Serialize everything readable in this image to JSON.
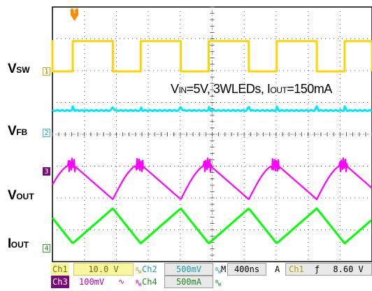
{
  "labels": {
    "vsw": {
      "main": "V",
      "sub": "SW"
    },
    "vfb": {
      "main": "V",
      "sub": "FB"
    },
    "vout": {
      "main": "V",
      "sub": "OUT"
    },
    "iout": {
      "main": "I",
      "sub": "OUT"
    }
  },
  "annotation": {
    "p1": "V",
    "p1sub": "IN",
    "p2": "=5V, 3WLEDs, I",
    "p2sub": "OUT",
    "p3": "=150mA"
  },
  "markers": {
    "ch1": "1",
    "ch2": "2",
    "ch3": "3",
    "ch4": "4",
    "trigger": "T"
  },
  "status": {
    "ch1": {
      "name": "Ch1",
      "value": "10.0 V"
    },
    "ch2": {
      "name": "Ch2",
      "value": "500mV"
    },
    "ch3": {
      "name": "Ch3",
      "value": "100mV"
    },
    "ch4": {
      "name": "Ch4",
      "value": "500mA"
    },
    "bw": "B",
    "bw_w": "W",
    "ac_symbol": "∿",
    "time_prefix": "M",
    "timebase": "400ns",
    "trigger_mode": "A",
    "trigger_source": "Ch1",
    "trigger_slope": "ƒ",
    "trigger_level": "8.60 V"
  },
  "colors": {
    "ch1": "#ffd400",
    "ch2": "#00e8ff",
    "ch3": "#ff00ff",
    "ch4": "#00ff00",
    "ch1_bg": "#f7f7a0",
    "ch3_tag_bg": "#7a0a7a",
    "trigger": "#ff8c00"
  },
  "chart_data": {
    "type": "line",
    "timebase_per_div": "400ns",
    "horizontal_divisions": 10,
    "vertical_divisions": 8,
    "switching_cycles_visible": 4.7,
    "series": [
      {
        "name": "V",
        "channel": 1,
        "scale_per_div": "10.0 V",
        "shape": "square wave, high about 60% of period",
        "amplitude_div": 1.0
      },
      {
        "name": "V",
        "channel": 2,
        "scale_per_div": "500mV",
        "shape": "near-flat with small ripple spikes at each edge",
        "amplitude_div": 0.12
      },
      {
        "name": "V",
        "channel": 3,
        "scale_per_div": "100mV",
        "shape": "sawtooth ripple with ringing at peak",
        "amplitude_div": 1.1
      },
      {
        "name": "I",
        "channel": 4,
        "scale_per_div": "500mA",
        "shape": "triangle wave",
        "amplitude_div": 1.1
      }
    ]
  }
}
